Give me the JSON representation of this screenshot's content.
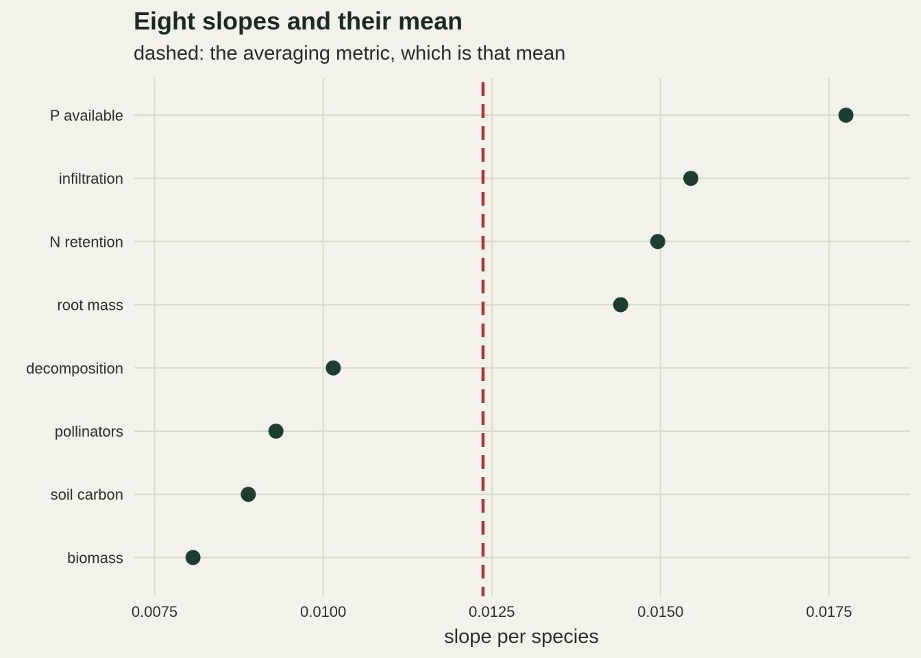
{
  "chart_data": {
    "type": "scatter",
    "title": "Eight slopes and their mean",
    "subtitle": "dashed: the averaging metric, which is that mean",
    "xlabel": "slope per species",
    "ylabel": "",
    "xlim": [
      0.0072,
      0.0187
    ],
    "x_ticks": [
      0.0075,
      0.01,
      0.0125,
      0.015,
      0.0175
    ],
    "x_tick_labels": [
      "0.0075",
      "0.0100",
      "0.0125",
      "0.0150",
      "0.0175"
    ],
    "grid": true,
    "categories": [
      "P available",
      "infiltration",
      "N retention",
      "root mass",
      "decomposition",
      "pollinators",
      "soil carbon",
      "biomass"
    ],
    "values": [
      0.01775,
      0.01545,
      0.01496,
      0.01441,
      0.01015,
      0.0093,
      0.00889,
      0.00807
    ],
    "reference_line": {
      "value": 0.01237,
      "style": "dashed"
    },
    "colors": {
      "background": "#f2f1ea",
      "grid": "#d8d8c8",
      "point": "#1f3d2c",
      "mean_line": "#a23b3f"
    }
  }
}
